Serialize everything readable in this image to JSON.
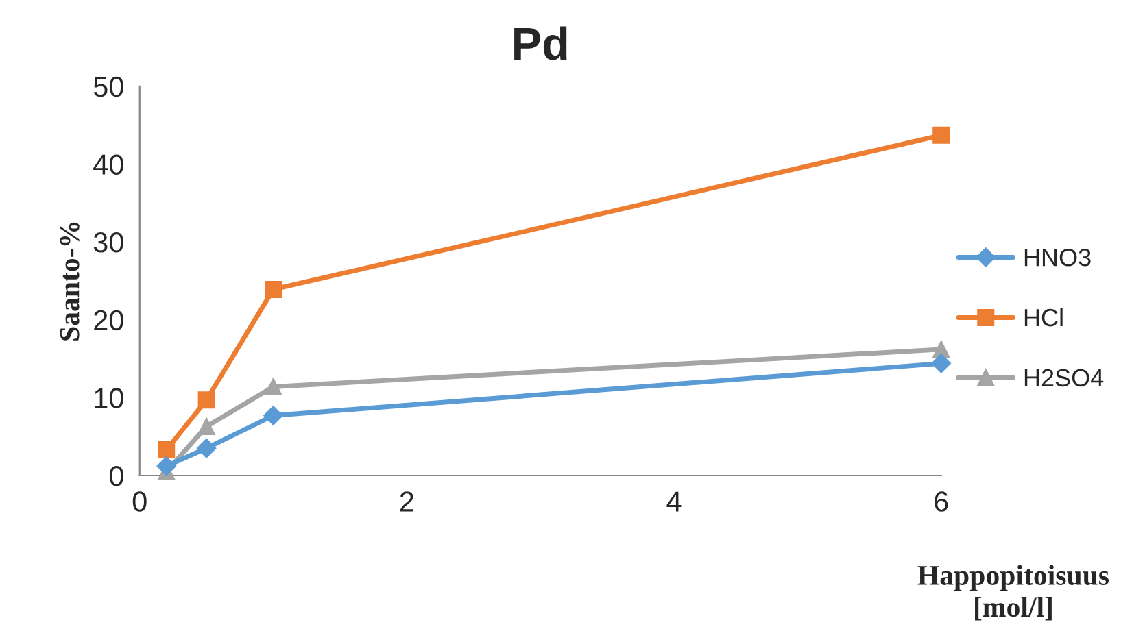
{
  "chart_data": {
    "type": "line",
    "title": "Pd",
    "xlabel": "Happopitoisuus\n[mol/l]",
    "ylabel": "Saanto-%",
    "x": [
      0.2,
      0.5,
      1,
      6
    ],
    "series": [
      {
        "name": "HNO3",
        "color": "#5b9bd5",
        "marker": "diamond",
        "values": [
          1.2,
          3.5,
          7.7,
          14.4
        ]
      },
      {
        "name": "HCl",
        "color": "#ed7d31",
        "marker": "square",
        "values": [
          3.3,
          9.7,
          23.9,
          43.7
        ]
      },
      {
        "name": "H2SO4",
        "color": "#a5a5a5",
        "marker": "triangle",
        "values": [
          0.5,
          6.3,
          11.4,
          16.2
        ]
      }
    ],
    "xlim": [
      0,
      6
    ],
    "xticks": [
      0,
      2,
      4,
      6
    ],
    "ylim": [
      0,
      50
    ],
    "yticks": [
      0,
      10,
      20,
      30,
      40,
      50
    ],
    "grid": false,
    "legend": "right",
    "line_style": "solid"
  }
}
